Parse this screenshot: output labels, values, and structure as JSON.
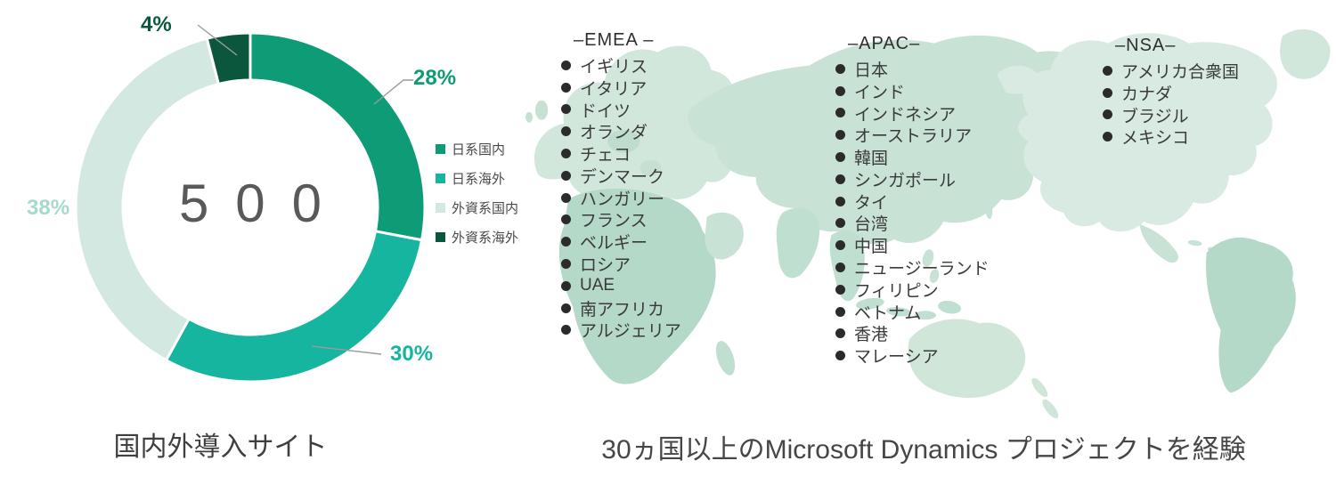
{
  "palette": {
    "green": "#0E9C77",
    "teal": "#15B5A0",
    "light_green": "#D3E8E0",
    "dark_green": "#0A573E",
    "label_38": "#A6DACB",
    "map_base": "#D8EAE1",
    "map_dark": "#B4D9C8",
    "center_text_gray": "#58595b"
  },
  "chart_data": {
    "type": "pie",
    "subtype": "donut",
    "title": "国内外導入サイト",
    "categories": [
      "日系国内",
      "日系海外",
      "外資系国内",
      "外資系海外"
    ],
    "values": [
      28,
      30,
      38,
      4
    ],
    "unit": "%",
    "colors": [
      "#0E9C77",
      "#15B5A0",
      "#D3E8E0",
      "#0A573E"
    ],
    "center_text": "500",
    "legend_position": "right",
    "start_angle_deg": 0,
    "direction": "clockwise"
  },
  "donut": {
    "pct_28": "28%",
    "pct_30": "30%",
    "pct_38": "38%",
    "pct_4": "4%"
  },
  "map": {
    "caption": "30ヵ国以上のMicrosoft Dynamics プロジェクトを経験",
    "regions": [
      {
        "name": "EMEA",
        "title": "–EMEA –",
        "countries": [
          "イギリス",
          "イタリア",
          "ドイツ",
          "オランダ",
          "チェコ",
          "デンマーク",
          "ハンガリー",
          "フランス",
          "ベルギー",
          "ロシア",
          "UAE",
          "南アフリカ",
          "アルジェリア"
        ]
      },
      {
        "name": "APAC",
        "title": "–APAC–",
        "countries": [
          "日本",
          "インド",
          "インドネシア",
          "オーストラリア",
          "韓国",
          "シンガポール",
          "タイ",
          "台湾",
          "中国",
          "ニュージーランド",
          "フィリピン",
          "ベトナム",
          "香港",
          "マレーシア"
        ]
      },
      {
        "name": "NSA",
        "title": "–NSA–",
        "countries": [
          "アメリカ合衆国",
          "カナダ",
          "ブラジル",
          "メキシコ"
        ]
      }
    ]
  }
}
